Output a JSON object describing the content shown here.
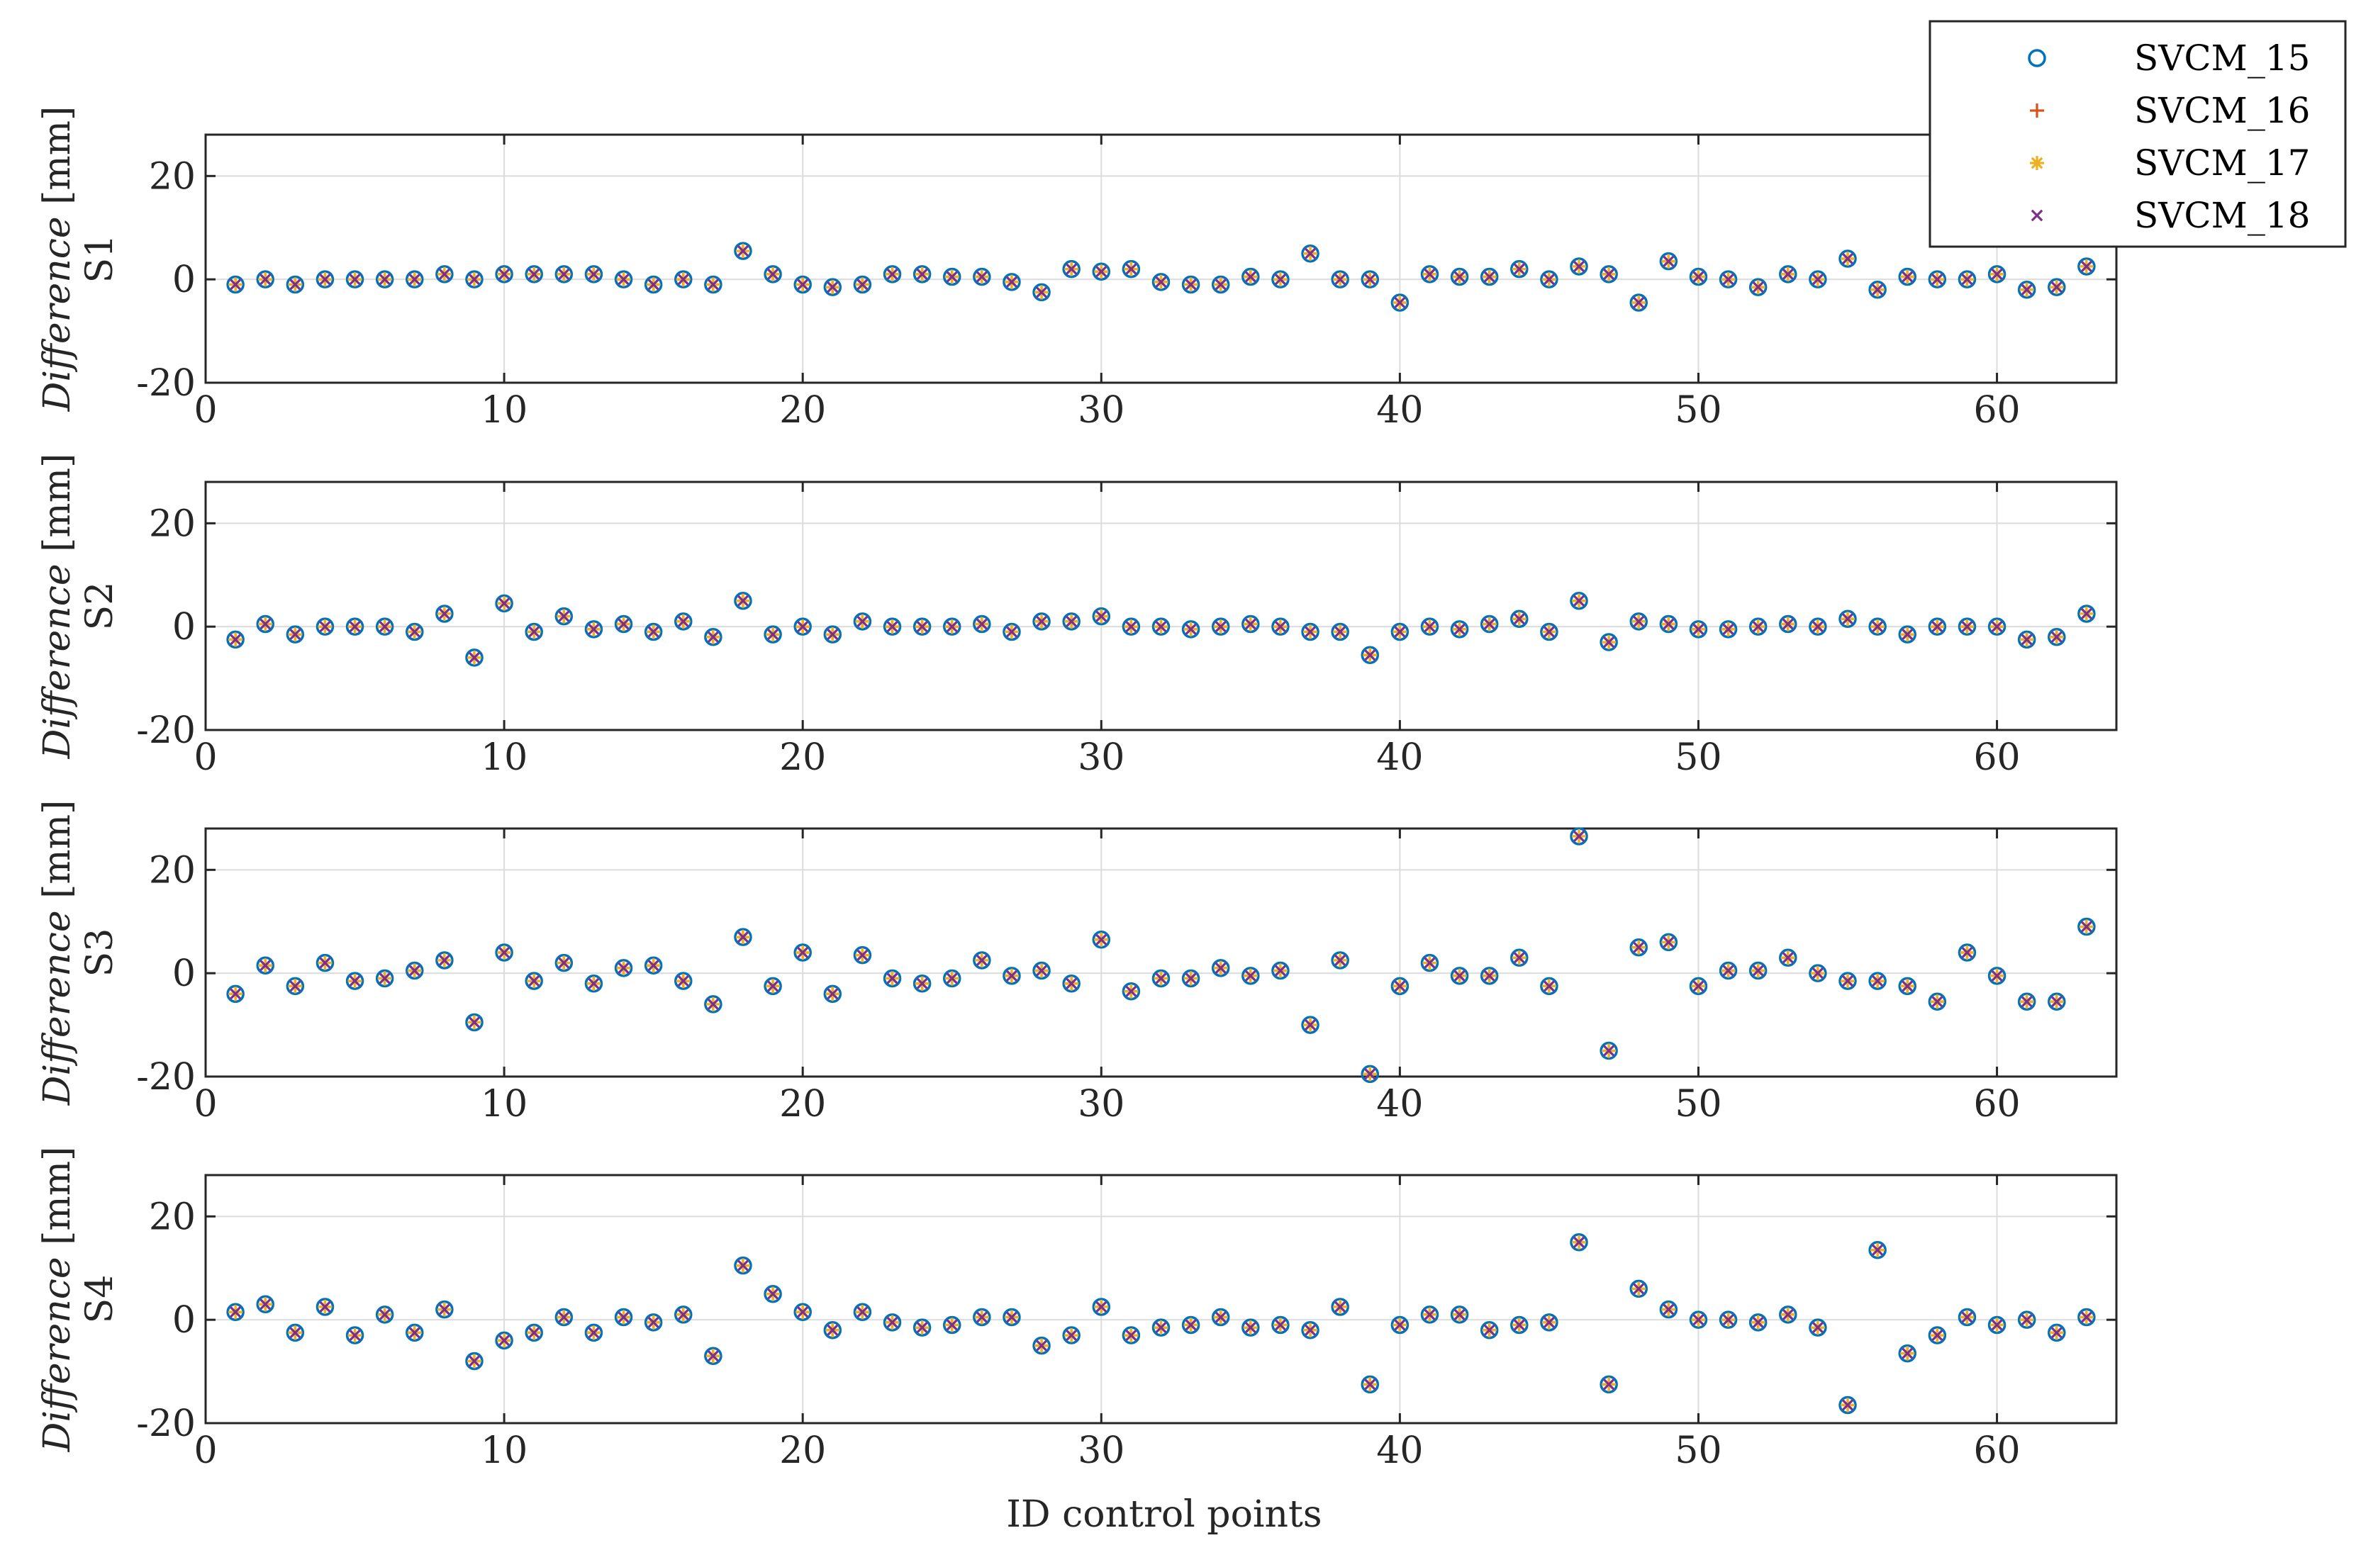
{
  "figure": {
    "xlabel": "ID control points",
    "panel_ylabel_prefix": "Difference",
    "panel_ylabel_unit": "[mm]"
  },
  "colors": {
    "SVCM_15": "#0072BD",
    "SVCM_16": "#D95319",
    "SVCM_17": "#EDB120",
    "SVCM_18": "#7E2F8E",
    "grid": "#dcdcdc",
    "axis": "#262626"
  },
  "legend": {
    "placement": "top-right",
    "entries": [
      {
        "label": "SVCM_15",
        "marker": "circle"
      },
      {
        "label": "SVCM_16",
        "marker": "plus"
      },
      {
        "label": "SVCM_17",
        "marker": "asterisk"
      },
      {
        "label": "SVCM_18",
        "marker": "x"
      }
    ]
  },
  "chart_data": [
    {
      "type": "scatter",
      "panel": "S1",
      "title": "",
      "xlabel": "",
      "ylabel": "Difference [mm]",
      "xlim": [
        0,
        64
      ],
      "ylim": [
        -20,
        28
      ],
      "xticks": [
        0,
        10,
        20,
        30,
        40,
        50,
        60
      ],
      "yticks": [
        -20,
        0,
        20
      ],
      "grid": true,
      "x": [
        1,
        2,
        3,
        4,
        5,
        6,
        7,
        8,
        9,
        10,
        11,
        12,
        13,
        14,
        15,
        16,
        17,
        18,
        19,
        20,
        21,
        22,
        23,
        24,
        25,
        26,
        27,
        28,
        29,
        30,
        31,
        32,
        33,
        34,
        35,
        36,
        37,
        38,
        39,
        40,
        41,
        42,
        43,
        44,
        45,
        46,
        47,
        48,
        49,
        50,
        51,
        52,
        53,
        54,
        55,
        56,
        57,
        58,
        59,
        60,
        61,
        62,
        63
      ],
      "values": [
        -1,
        0,
        -1,
        0,
        0,
        0,
        0,
        1,
        0,
        1,
        1,
        1,
        1,
        0,
        -1,
        0,
        -1,
        5.5,
        1,
        -1,
        -1.5,
        -1,
        1,
        1,
        0.5,
        0.5,
        -0.5,
        -2.5,
        2,
        1.5,
        2,
        -0.5,
        -1,
        -1,
        0.5,
        0,
        5,
        0,
        0,
        -4.5,
        1,
        0.5,
        0.5,
        2,
        0,
        2.5,
        1,
        -4.5,
        3.5,
        0.5,
        0,
        -1.5,
        1,
        0,
        4,
        -2,
        0.5,
        0,
        0,
        1,
        -2,
        -1.5,
        2.5
      ],
      "series": [
        {
          "name": "SVCM_15",
          "same_as": "values"
        },
        {
          "name": "SVCM_16",
          "same_as": "values"
        },
        {
          "name": "SVCM_17",
          "same_as": "values"
        },
        {
          "name": "SVCM_18",
          "same_as": "values"
        }
      ]
    },
    {
      "type": "scatter",
      "panel": "S2",
      "title": "",
      "xlabel": "",
      "ylabel": "Difference [mm]",
      "xlim": [
        0,
        64
      ],
      "ylim": [
        -20,
        28
      ],
      "xticks": [
        0,
        10,
        20,
        30,
        40,
        50,
        60
      ],
      "yticks": [
        -20,
        0,
        20
      ],
      "grid": true,
      "x": [
        1,
        2,
        3,
        4,
        5,
        6,
        7,
        8,
        9,
        10,
        11,
        12,
        13,
        14,
        15,
        16,
        17,
        18,
        19,
        20,
        21,
        22,
        23,
        24,
        25,
        26,
        27,
        28,
        29,
        30,
        31,
        32,
        33,
        34,
        35,
        36,
        37,
        38,
        39,
        40,
        41,
        42,
        43,
        44,
        45,
        46,
        47,
        48,
        49,
        50,
        51,
        52,
        53,
        54,
        55,
        56,
        57,
        58,
        59,
        60,
        61,
        62,
        63
      ],
      "values": [
        -2.5,
        0.5,
        -1.5,
        0,
        0,
        0,
        -1,
        2.5,
        -6,
        4.5,
        -1,
        2,
        -0.5,
        0.5,
        -1,
        1,
        -2,
        5,
        -1.5,
        0,
        -1.5,
        1,
        0,
        0,
        0,
        0.5,
        -1,
        1,
        1,
        2,
        0,
        0,
        -0.5,
        0,
        0.5,
        0,
        -1,
        -1,
        -5.5,
        -1,
        0,
        -0.5,
        0.5,
        1.5,
        -1,
        5,
        -3,
        1,
        0.5,
        -0.5,
        -0.5,
        0,
        0.5,
        0,
        1.5,
        0,
        -1.5,
        0,
        0,
        0,
        -2.5,
        -2,
        2.5
      ],
      "series": [
        {
          "name": "SVCM_15",
          "same_as": "values"
        },
        {
          "name": "SVCM_16",
          "same_as": "values"
        },
        {
          "name": "SVCM_17",
          "same_as": "values"
        },
        {
          "name": "SVCM_18",
          "same_as": "values"
        }
      ]
    },
    {
      "type": "scatter",
      "panel": "S3",
      "title": "",
      "xlabel": "",
      "ylabel": "Difference [mm]",
      "xlim": [
        0,
        64
      ],
      "ylim": [
        -20,
        28
      ],
      "xticks": [
        0,
        10,
        20,
        30,
        40,
        50,
        60
      ],
      "yticks": [
        -20,
        0,
        20
      ],
      "grid": true,
      "x": [
        1,
        2,
        3,
        4,
        5,
        6,
        7,
        8,
        9,
        10,
        11,
        12,
        13,
        14,
        15,
        16,
        17,
        18,
        19,
        20,
        21,
        22,
        23,
        24,
        25,
        26,
        27,
        28,
        29,
        30,
        31,
        32,
        33,
        34,
        35,
        36,
        37,
        38,
        39,
        40,
        41,
        42,
        43,
        44,
        45,
        46,
        47,
        48,
        49,
        50,
        51,
        52,
        53,
        54,
        55,
        56,
        57,
        58,
        59,
        60,
        61,
        62,
        63
      ],
      "values": [
        -4,
        1.5,
        -2.5,
        2,
        -1.5,
        -1,
        0.5,
        2.5,
        -9.5,
        4,
        -1.5,
        2,
        -2,
        1,
        1.5,
        -1.5,
        -6,
        7,
        -2.5,
        4,
        -4,
        3.5,
        -1,
        -2,
        -1,
        2.5,
        -0.5,
        0.5,
        -2,
        6.5,
        -3.5,
        -1,
        -1,
        1,
        -0.5,
        0.5,
        -10,
        2.5,
        -19.5,
        -2.5,
        2,
        -0.5,
        -0.5,
        3,
        -2.5,
        26.5,
        -15,
        5,
        6,
        -2.5,
        0.5,
        0.5,
        3,
        0,
        -1.5,
        -1.5,
        -2.5,
        -5.5,
        4,
        -0.5,
        -5.5,
        -5.5,
        9
      ],
      "series": [
        {
          "name": "SVCM_15",
          "same_as": "values"
        },
        {
          "name": "SVCM_16",
          "same_as": "values"
        },
        {
          "name": "SVCM_17",
          "same_as": "values"
        },
        {
          "name": "SVCM_18",
          "same_as": "values"
        }
      ]
    },
    {
      "type": "scatter",
      "panel": "S4",
      "title": "",
      "xlabel": "ID control points",
      "ylabel": "Difference [mm]",
      "xlim": [
        0,
        64
      ],
      "ylim": [
        -20,
        28
      ],
      "xticks": [
        0,
        10,
        20,
        30,
        40,
        50,
        60
      ],
      "yticks": [
        -20,
        0,
        20
      ],
      "grid": true,
      "x": [
        1,
        2,
        3,
        4,
        5,
        6,
        7,
        8,
        9,
        10,
        11,
        12,
        13,
        14,
        15,
        16,
        17,
        18,
        19,
        20,
        21,
        22,
        23,
        24,
        25,
        26,
        27,
        28,
        29,
        30,
        31,
        32,
        33,
        34,
        35,
        36,
        37,
        38,
        39,
        40,
        41,
        42,
        43,
        44,
        45,
        46,
        47,
        48,
        49,
        50,
        51,
        52,
        53,
        54,
        55,
        56,
        57,
        58,
        59,
        60,
        61,
        62,
        63
      ],
      "values": [
        1.5,
        3,
        -2.5,
        2.5,
        -3,
        1,
        -2.5,
        2,
        -8,
        -4,
        -2.5,
        0.5,
        -2.5,
        0.5,
        -0.5,
        1,
        -7,
        10.5,
        5,
        1.5,
        -2,
        1.5,
        -0.5,
        -1.5,
        -1,
        0.5,
        0.5,
        -5,
        -3,
        2.5,
        -3,
        -1.5,
        -1,
        0.5,
        -1.5,
        -1,
        -2,
        2.5,
        -12.5,
        -1,
        1,
        1,
        -2,
        -1,
        -0.5,
        15,
        -12.5,
        6,
        2,
        0,
        0,
        -0.5,
        1,
        -1.5,
        -16.5,
        13.5,
        -6.5,
        -3,
        0.5,
        -1,
        0,
        -2.5,
        0.5
      ],
      "series": [
        {
          "name": "SVCM_15",
          "same_as": "values"
        },
        {
          "name": "SVCM_16",
          "same_as": "values"
        },
        {
          "name": "SVCM_17",
          "same_as": "values"
        },
        {
          "name": "SVCM_18",
          "same_as": "values"
        }
      ]
    }
  ]
}
